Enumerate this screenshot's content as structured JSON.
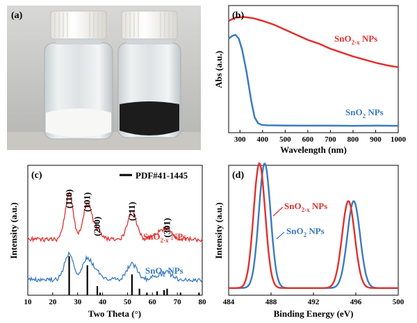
{
  "panels": {
    "a": {
      "label": "(a)"
    },
    "b": {
      "label": "(b)"
    },
    "c": {
      "label": "(c)"
    },
    "d": {
      "label": "(d)"
    }
  },
  "colors": {
    "red": "#e0302e",
    "blue": "#3b7bbf",
    "black": "#000000"
  },
  "chart_data": [
    {
      "panel": "b",
      "type": "line",
      "xlabel": "Wavelength (nm)",
      "ylabel": "Abs (a.u.)",
      "xlim": [
        250,
        1000
      ],
      "ylim": [
        0,
        1
      ],
      "xticks": [
        300,
        400,
        500,
        600,
        700,
        800,
        900,
        1000
      ],
      "series": [
        {
          "name": "SnO2-x NPs",
          "label_main": "SnO",
          "label_sub": "2-x",
          "label_rest": " NPs",
          "color": "#e0302e",
          "x": [
            250,
            280,
            320,
            360,
            400,
            450,
            500,
            550,
            600,
            650,
            700,
            750,
            800,
            850,
            900,
            950,
            1000
          ],
          "y": [
            0.88,
            0.905,
            0.91,
            0.9,
            0.88,
            0.85,
            0.81,
            0.77,
            0.73,
            0.7,
            0.66,
            0.63,
            0.6,
            0.575,
            0.55,
            0.53,
            0.515
          ]
        },
        {
          "name": "SnO2 NPs",
          "label_main": "SnO",
          "label_sub": "2",
          "label_rest": " NPs",
          "color": "#3b7bbf",
          "x": [
            250,
            265,
            280,
            295,
            310,
            330,
            350,
            365,
            380,
            395,
            420,
            500,
            600,
            700,
            800,
            900,
            1000
          ],
          "y": [
            0.74,
            0.76,
            0.77,
            0.74,
            0.65,
            0.47,
            0.25,
            0.12,
            0.075,
            0.062,
            0.058,
            0.056,
            0.055,
            0.055,
            0.054,
            0.055,
            0.054
          ]
        }
      ]
    },
    {
      "panel": "c",
      "type": "line",
      "xlabel": "Two Theta (°)",
      "ylabel": "Intensity (a.u.)",
      "xlim": [
        10,
        80
      ],
      "ylim": [
        0,
        1
      ],
      "xticks": [
        10,
        20,
        30,
        40,
        50,
        60,
        70,
        80
      ],
      "legend": "PDF#41-1445",
      "peak_labels": [
        {
          "text": "(110)",
          "x": 26.6
        },
        {
          "text": "(101)",
          "x": 33.9
        },
        {
          "text": "(200)",
          "x": 37.9
        },
        {
          "text": "(211)",
          "x": 51.8
        },
        {
          "text": "(301)",
          "x": 65.9
        }
      ],
      "reference_lines": [
        {
          "x": 26.6,
          "h": 0.3
        },
        {
          "x": 33.9,
          "h": 0.23
        },
        {
          "x": 37.9,
          "h": 0.07
        },
        {
          "x": 39.0,
          "h": 0.02
        },
        {
          "x": 51.8,
          "h": 0.16
        },
        {
          "x": 54.8,
          "h": 0.05
        },
        {
          "x": 57.8,
          "h": 0.02
        },
        {
          "x": 61.9,
          "h": 0.03
        },
        {
          "x": 64.7,
          "h": 0.04
        },
        {
          "x": 65.9,
          "h": 0.05
        },
        {
          "x": 71.3,
          "h": 0.02
        },
        {
          "x": 78.7,
          "h": 0.02
        }
      ],
      "series": [
        {
          "name": "SnO2-x NPs",
          "label_main": "SnO",
          "label_sub": "2-x",
          "label_rest": " NPs",
          "color": "#e0302e",
          "baseline": 0.43,
          "peaks": [
            {
              "x": 26.6,
              "h": 0.35,
              "w": 1.6
            },
            {
              "x": 33.9,
              "h": 0.27,
              "w": 1.7
            },
            {
              "x": 37.9,
              "h": 0.07,
              "w": 1.8
            },
            {
              "x": 51.8,
              "h": 0.22,
              "w": 1.8
            },
            {
              "x": 65.9,
              "h": 0.08,
              "w": 2.0
            },
            {
              "x": 61.9,
              "h": 0.04,
              "w": 2.0
            }
          ]
        },
        {
          "name": "SnO2 NPs",
          "label_main": "SnO",
          "label_sub": "2",
          "label_rest": " NPs",
          "color": "#3b7bbf",
          "baseline": 0.12,
          "peaks": [
            {
              "x": 26.6,
              "h": 0.2,
              "w": 1.8
            },
            {
              "x": 33.9,
              "h": 0.16,
              "w": 1.9
            },
            {
              "x": 37.9,
              "h": 0.05,
              "w": 2.0
            },
            {
              "x": 51.8,
              "h": 0.12,
              "w": 2.0
            },
            {
              "x": 65.9,
              "h": 0.05,
              "w": 2.0
            },
            {
              "x": 61.9,
              "h": 0.03,
              "w": 2.0
            }
          ]
        }
      ]
    },
    {
      "panel": "d",
      "type": "line",
      "xlabel": "Binding Energy (eV)",
      "ylabel": "Intensity (a.u.)",
      "xlim": [
        484,
        500
      ],
      "ylim": [
        0,
        1
      ],
      "xticks": [
        484,
        488,
        492,
        496,
        500
      ],
      "series": [
        {
          "name": "SnO2-x NPs",
          "label_main": "SnO",
          "label_sub": "2-x",
          "label_rest": " NPs",
          "color": "#e0302e",
          "peaks": [
            {
              "x": 486.9,
              "h": 0.96,
              "w": 0.55
            },
            {
              "x": 495.3,
              "h": 0.67,
              "w": 0.6
            }
          ]
        },
        {
          "name": "SnO2 NPs",
          "label_main": "SnO",
          "label_sub": "2",
          "label_rest": " NPs",
          "color": "#3b7bbf",
          "peaks": [
            {
              "x": 487.4,
              "h": 0.96,
              "w": 0.55
            },
            {
              "x": 495.8,
              "h": 0.67,
              "w": 0.6
            }
          ]
        }
      ]
    }
  ]
}
